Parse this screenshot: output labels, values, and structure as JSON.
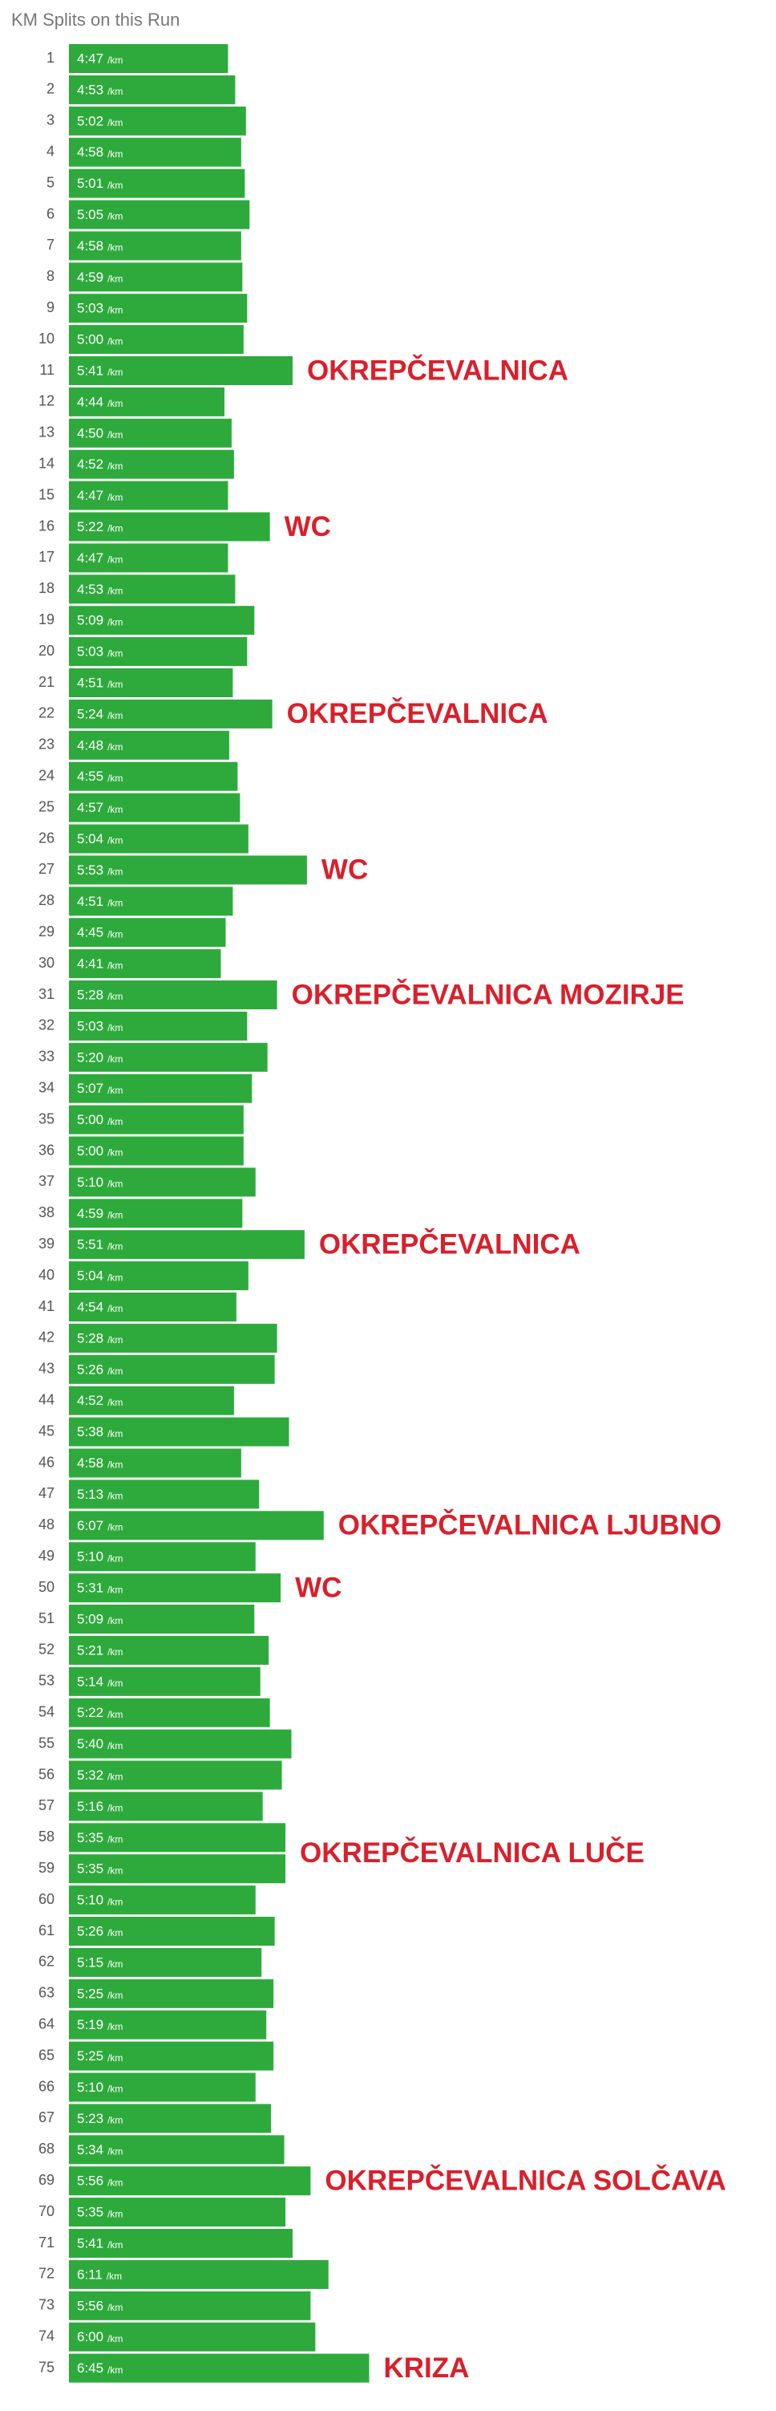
{
  "chart_data": {
    "type": "bar",
    "orientation": "horizontal",
    "title": "KM Splits on this Run",
    "unit": "/km",
    "color": "#2eaa3c",
    "categories": [
      "1",
      "2",
      "3",
      "4",
      "5",
      "6",
      "7",
      "8",
      "9",
      "10",
      "11",
      "12",
      "13",
      "14",
      "15",
      "16",
      "17",
      "18",
      "19",
      "20",
      "21",
      "22",
      "23",
      "24",
      "25",
      "26",
      "27",
      "28",
      "29",
      "30",
      "31",
      "32",
      "33",
      "34",
      "35",
      "36",
      "37",
      "38",
      "39",
      "40",
      "41",
      "42",
      "43",
      "44",
      "45",
      "46",
      "47",
      "48",
      "49",
      "50",
      "51",
      "52",
      "53",
      "54",
      "55",
      "56",
      "57",
      "58",
      "59",
      "60",
      "61",
      "62",
      "63",
      "64",
      "65",
      "66",
      "67",
      "68",
      "69",
      "70",
      "71",
      "72",
      "73",
      "74",
      "75"
    ],
    "values": [
      287,
      293,
      302,
      298,
      301,
      305,
      298,
      299,
      303,
      300,
      341,
      284,
      290,
      292,
      287,
      322,
      287,
      293,
      309,
      303,
      291,
      324,
      288,
      295,
      297,
      304,
      353,
      291,
      285,
      281,
      328,
      303,
      320,
      307,
      300,
      300,
      310,
      299,
      351,
      304,
      294,
      328,
      326,
      292,
      338,
      298,
      313,
      367,
      310,
      331,
      309,
      321,
      314,
      322,
      340,
      332,
      316,
      335,
      335,
      310,
      326,
      315,
      325,
      319,
      325,
      310,
      323,
      334,
      356,
      335,
      341,
      371,
      356,
      360,
      405
    ],
    "value_labels": [
      "4:47",
      "4:53",
      "5:02",
      "4:58",
      "5:01",
      "5:05",
      "4:58",
      "4:59",
      "5:03",
      "5:00",
      "5:41",
      "4:44",
      "4:50",
      "4:52",
      "4:47",
      "5:22",
      "4:47",
      "4:53",
      "5:09",
      "5:03",
      "4:51",
      "5:24",
      "4:48",
      "4:55",
      "4:57",
      "5:04",
      "5:53",
      "4:51",
      "4:45",
      "4:41",
      "5:28",
      "5:03",
      "5:20",
      "5:07",
      "5:00",
      "5:00",
      "5:10",
      "4:59",
      "5:51",
      "5:04",
      "4:54",
      "5:28",
      "5:26",
      "4:52",
      "5:38",
      "4:58",
      "5:13",
      "6:07",
      "5:10",
      "5:31",
      "5:09",
      "5:21",
      "5:14",
      "5:22",
      "5:40",
      "5:32",
      "5:16",
      "5:35",
      "5:35",
      "5:10",
      "5:26",
      "5:15",
      "5:25",
      "5:19",
      "5:25",
      "5:10",
      "5:23",
      "5:34",
      "5:56",
      "5:35",
      "5:41",
      "6:11",
      "5:56",
      "6:00",
      "6:45"
    ],
    "xlim": [
      154,
      440
    ],
    "annotations": [
      {
        "text": "OKREPČEVALNICA",
        "rows": [
          11
        ]
      },
      {
        "text": "WC",
        "rows": [
          16
        ]
      },
      {
        "text": "OKREPČEVALNICA",
        "rows": [
          22
        ]
      },
      {
        "text": "WC",
        "rows": [
          27
        ]
      },
      {
        "text": "OKREPČEVALNICA MOZIRJE",
        "rows": [
          31
        ]
      },
      {
        "text": "OKREPČEVALNICA",
        "rows": [
          39
        ]
      },
      {
        "text": "OKREPČEVALNICA LJUBNO",
        "rows": [
          48
        ]
      },
      {
        "text": "WC",
        "rows": [
          50
        ]
      },
      {
        "text": "OKREPČEVALNICA LUČE",
        "rows": [
          58,
          59
        ]
      },
      {
        "text": "OKREPČEVALNICA SOLČAVA",
        "rows": [
          69
        ]
      },
      {
        "text": "KRIZA",
        "rows": [
          75
        ]
      }
    ]
  }
}
